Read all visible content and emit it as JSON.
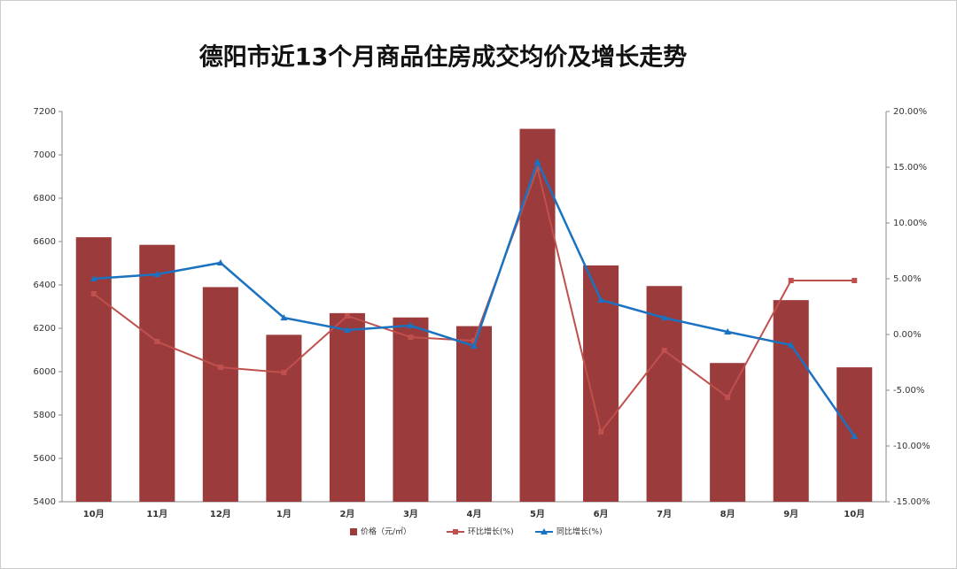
{
  "chart_data": {
    "type": "bar-line",
    "title": "德阳市近13个月商品住房成交均价及增长走势",
    "categories": [
      "10月",
      "11月",
      "12月",
      "1月",
      "2月",
      "3月",
      "4月",
      "5月",
      "6月",
      "7月",
      "8月",
      "9月",
      "10月"
    ],
    "series": [
      {
        "name": "价格（元/㎡）",
        "type": "bar",
        "color": "#9c3b3b",
        "values": [
          6620,
          6585,
          6390,
          6170,
          6270,
          6250,
          6210,
          7120,
          6490,
          6395,
          6040,
          6330,
          6020
        ]
      },
      {
        "name": "环比增长(%)",
        "type": "line",
        "axis": "y2",
        "marker": "square",
        "color": "#c0504d",
        "values": [
          3.65,
          -0.63,
          -2.94,
          -3.41,
          1.67,
          -0.24,
          -0.56,
          14.9,
          -8.73,
          -1.43,
          -5.63,
          4.84,
          4.84
        ]
      },
      {
        "name": "同比增长(%)",
        "type": "line",
        "axis": "y2",
        "marker": "triangle",
        "color": "#1a72c0",
        "values": [
          5.0,
          5.4,
          6.43,
          1.5,
          0.4,
          0.8,
          -1.03,
          15.5,
          3.1,
          1.5,
          0.24,
          -0.95,
          -9.13
        ]
      }
    ],
    "ylim": [
      5400,
      7200
    ],
    "yticks": [
      5400,
      5600,
      5800,
      6000,
      6200,
      6400,
      6600,
      6800,
      7000,
      7200
    ],
    "y2lim": [
      -15,
      20
    ],
    "y2ticks": [
      {
        "value": -15,
        "label": "-15.00%"
      },
      {
        "value": -10,
        "label": "-10.00%"
      },
      {
        "value": -5,
        "label": "-5.00%"
      },
      {
        "value": 0,
        "label": "0.00%"
      },
      {
        "value": 5,
        "label": "5.00%"
      },
      {
        "value": 10,
        "label": "10.00%"
      },
      {
        "value": 15,
        "label": "15.00%"
      },
      {
        "value": 20,
        "label": "20.00%"
      }
    ],
    "legend": "bottom"
  }
}
